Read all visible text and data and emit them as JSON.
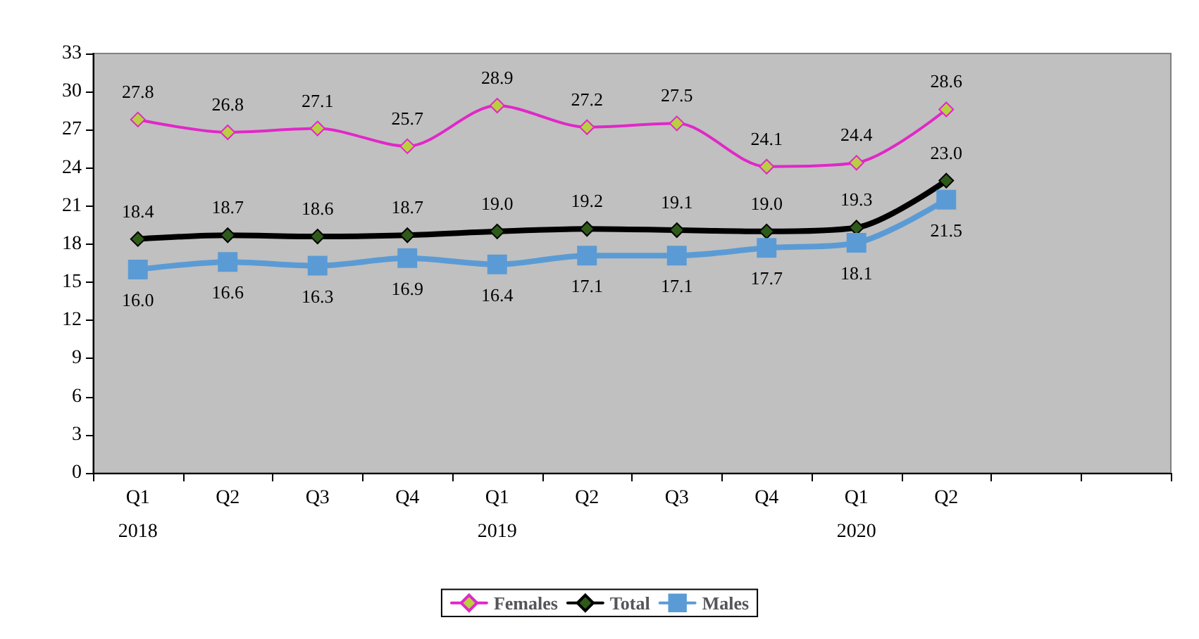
{
  "chart_data": {
    "type": "line",
    "categories": [
      "Q1\n\n2018",
      "Q2",
      "Q3",
      "Q4",
      "Q1\n\n2019",
      "Q2",
      "Q3",
      "Q4",
      "Q1\n\n2020",
      "Q2",
      null,
      null
    ],
    "ylim": [
      0,
      33
    ],
    "yticks": [
      0,
      3,
      6,
      9,
      12,
      15,
      18,
      21,
      24,
      27,
      30,
      33
    ],
    "grid": false,
    "legend": "bottom",
    "series": [
      {
        "name": "Females",
        "color": "#e028c8",
        "marker": "diamond",
        "values": [
          27.8,
          26.8,
          27.1,
          25.7,
          28.9,
          27.2,
          27.5,
          24.1,
          24.4,
          28.6,
          null,
          null
        ],
        "value_labels": [
          "27.8",
          "26.8",
          "27.1",
          "25.7",
          "28.9",
          "27.2",
          "27.5",
          "24.1",
          "24.4",
          "28.6",
          null,
          null
        ]
      },
      {
        "name": "Total",
        "color": "#000000",
        "marker": "diamond",
        "values": [
          18.4,
          18.7,
          18.6,
          18.7,
          19.0,
          19.2,
          19.1,
          19.0,
          19.3,
          23.0,
          null,
          null
        ],
        "value_labels": [
          "18.4",
          "18.7",
          "18.6",
          "18.7",
          "19.0",
          "19.2",
          "19.1",
          "19.0",
          "19.3",
          "23.0",
          null,
          null
        ]
      },
      {
        "name": "Males",
        "color": "#5b9bd5",
        "marker": "square",
        "values": [
          16.0,
          16.6,
          16.3,
          16.9,
          16.4,
          17.1,
          17.1,
          17.7,
          18.1,
          21.5,
          null,
          null
        ],
        "value_labels": [
          "16.0",
          "16.6",
          "16.3",
          "16.9",
          "16.4",
          "17.1",
          "17.1",
          "17.7",
          "18.1",
          "21.5",
          null,
          null
        ]
      }
    ]
  }
}
